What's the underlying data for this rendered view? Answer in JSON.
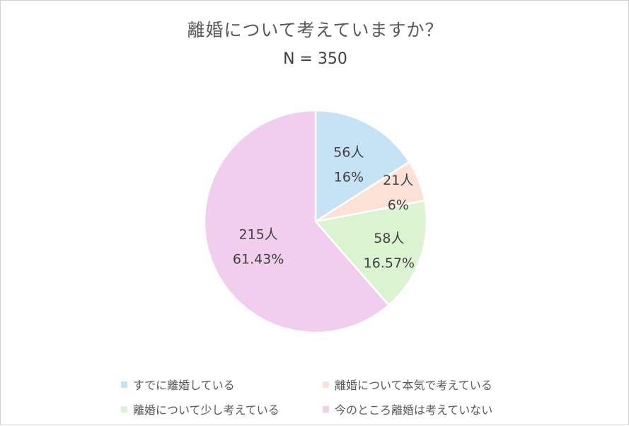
{
  "chart_data": {
    "type": "pie",
    "title": "離婚について考えていますか？",
    "subtitle": "N = 350",
    "categories": [
      "すでに離婚している",
      "離婚について本気で考えている",
      "離婚について少し考えている",
      "今のところ離婚は考えていない"
    ],
    "values": [
      56,
      21,
      58,
      215
    ],
    "value_labels": [
      "56人",
      "21人",
      "58人",
      "215人"
    ],
    "percent_labels": [
      "16%",
      "6%",
      "16.57%",
      "61.43%"
    ],
    "colors": [
      "#c5e3f5",
      "#fbe1d6",
      "#dcf3d2",
      "#f1cdee"
    ],
    "legend_position": "bottom",
    "start_angle": "12 o'clock",
    "direction": "clockwise"
  }
}
